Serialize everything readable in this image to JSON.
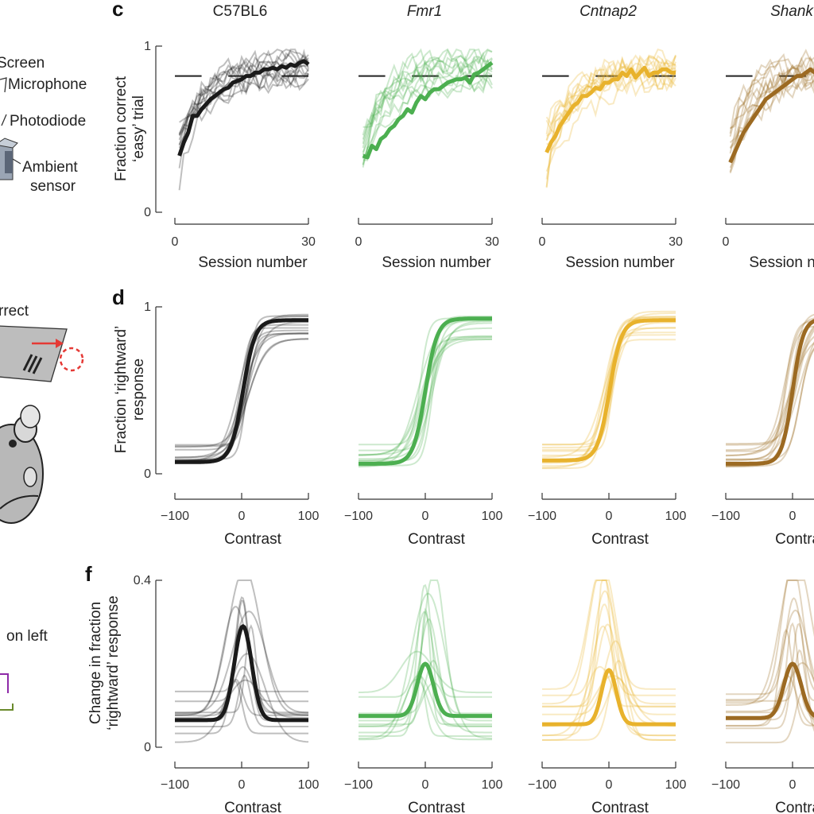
{
  "left_panel": {
    "screen_label": "Screen",
    "microphone_label": "Microphone",
    "photodiode_label": "Photodiode",
    "ambient_label": "Ambient",
    "sensor_label": "sensor",
    "correct_label": "rrect",
    "on_left_label": "on left"
  },
  "panels": {
    "c": "c",
    "d": "d",
    "f": "f"
  },
  "genotypes": [
    {
      "label": "C57BL6",
      "italic": false,
      "color": "#1a1a1a"
    },
    {
      "label": "Fmr1",
      "italic": true,
      "color": "#4caf50"
    },
    {
      "label": "Cntnap2",
      "italic": true,
      "color": "#e8b22c"
    },
    {
      "label": "Shank",
      "italic": true,
      "color": "#9c6a22"
    }
  ],
  "rows": {
    "c": {
      "ylabel_line1": "Fraction correct",
      "ylabel_line2": "‘easy’ trial",
      "xlabel": "Session number",
      "xticks": [
        "0",
        "30"
      ],
      "yticks": [
        "0",
        "1"
      ]
    },
    "d": {
      "ylabel_line1": "Fraction ‘rightward’",
      "ylabel_line2": "response",
      "xlabel": "Contrast",
      "xticks": [
        "−100",
        "0",
        "100"
      ],
      "yticks": [
        "0",
        "1"
      ]
    },
    "f": {
      "ylabel_line1": "Change in fraction",
      "ylabel_line2": "‘rightward’ response",
      "xlabel": "Contrast",
      "xticks": [
        "−100",
        "0",
        "100"
      ],
      "yticks": [
        "0",
        "0.4"
      ]
    }
  },
  "chart_data": [
    {
      "type": "line",
      "panel": "c",
      "xlabel": "Session number",
      "ylabel": "Fraction correct ‘easy’ trial",
      "xlim": [
        0,
        30
      ],
      "ylim": [
        0,
        1
      ],
      "criterion_level": 0.82,
      "series": [
        {
          "name": "C57BL6",
          "x": [
            1,
            2,
            3,
            4,
            5,
            6,
            7,
            8,
            9,
            10,
            11,
            12,
            13,
            14,
            15,
            16,
            17,
            18,
            19,
            20,
            21,
            22,
            23,
            24,
            25,
            26,
            27,
            28,
            29,
            30
          ],
          "values": [
            0.34,
            0.42,
            0.48,
            0.58,
            0.58,
            0.62,
            0.65,
            0.68,
            0.7,
            0.72,
            0.74,
            0.75,
            0.78,
            0.79,
            0.8,
            0.82,
            0.82,
            0.84,
            0.84,
            0.86,
            0.86,
            0.87,
            0.86,
            0.88,
            0.87,
            0.89,
            0.88,
            0.9,
            0.91,
            0.89
          ]
        },
        {
          "name": "Fmr1",
          "x": [
            1,
            2,
            3,
            4,
            5,
            6,
            7,
            8,
            9,
            10,
            11,
            12,
            13,
            14,
            15,
            16,
            17,
            18,
            19,
            20,
            21,
            22,
            23,
            24,
            25,
            26,
            27,
            28,
            29,
            30
          ],
          "values": [
            0.34,
            0.33,
            0.4,
            0.38,
            0.44,
            0.46,
            0.5,
            0.52,
            0.56,
            0.58,
            0.62,
            0.6,
            0.66,
            0.7,
            0.68,
            0.72,
            0.74,
            0.74,
            0.76,
            0.78,
            0.79,
            0.8,
            0.8,
            0.81,
            0.78,
            0.83,
            0.84,
            0.86,
            0.88,
            0.9
          ]
        },
        {
          "name": "Cntnap2",
          "x": [
            1,
            2,
            3,
            4,
            5,
            6,
            7,
            8,
            9,
            10,
            11,
            12,
            13,
            14,
            15,
            16,
            17,
            18,
            19,
            20,
            21,
            22,
            23,
            24,
            25,
            26,
            27,
            28,
            29,
            30
          ],
          "values": [
            0.36,
            0.42,
            0.46,
            0.52,
            0.56,
            0.6,
            0.64,
            0.66,
            0.7,
            0.7,
            0.72,
            0.75,
            0.74,
            0.78,
            0.78,
            0.8,
            0.8,
            0.84,
            0.82,
            0.86,
            0.81,
            0.84,
            0.87,
            0.82,
            0.84,
            0.84,
            0.86,
            0.86,
            0.84,
            0.84
          ]
        },
        {
          "name": "Shank",
          "x": [
            1,
            2,
            3,
            4,
            5,
            6,
            7,
            8,
            9,
            10,
            11,
            12,
            13,
            14,
            15,
            16,
            17,
            18,
            19,
            20
          ],
          "values": [
            0.3,
            0.36,
            0.42,
            0.48,
            0.52,
            0.56,
            0.6,
            0.64,
            0.68,
            0.7,
            0.72,
            0.74,
            0.76,
            0.78,
            0.8,
            0.82,
            0.82,
            0.84,
            0.86,
            0.84
          ]
        }
      ]
    },
    {
      "type": "line",
      "panel": "d",
      "xlabel": "Contrast",
      "ylabel": "Fraction ‘rightward’ response",
      "xlim": [
        -100,
        100
      ],
      "ylim": [
        0,
        1
      ],
      "series": [
        {
          "name": "C57BL6",
          "lower": 0.07,
          "upper": 0.92,
          "midpoint": 2,
          "slope": 9
        },
        {
          "name": "Fmr1",
          "lower": 0.06,
          "upper": 0.93,
          "midpoint": 0,
          "slope": 9
        },
        {
          "name": "Cntnap2",
          "lower": 0.08,
          "upper": 0.92,
          "midpoint": 1,
          "slope": 9
        },
        {
          "name": "Shank",
          "lower": 0.06,
          "upper": 0.93,
          "midpoint": 0,
          "slope": 8
        }
      ]
    },
    {
      "type": "line",
      "panel": "f",
      "xlabel": "Contrast",
      "ylabel": "Change in fraction ‘rightward’ response",
      "xlim": [
        -100,
        100
      ],
      "ylim": [
        0,
        0.4
      ],
      "series": [
        {
          "name": "C57BL6",
          "baseline": 0.065,
          "peak": 0.29,
          "center": 2,
          "width": 13
        },
        {
          "name": "Fmr1",
          "baseline": 0.075,
          "peak": 0.2,
          "center": 0,
          "width": 12
        },
        {
          "name": "Cntnap2",
          "baseline": 0.055,
          "peak": 0.185,
          "center": 0,
          "width": 11
        },
        {
          "name": "Shank",
          "baseline": 0.07,
          "peak": 0.2,
          "center": 0,
          "width": 13
        }
      ]
    }
  ]
}
